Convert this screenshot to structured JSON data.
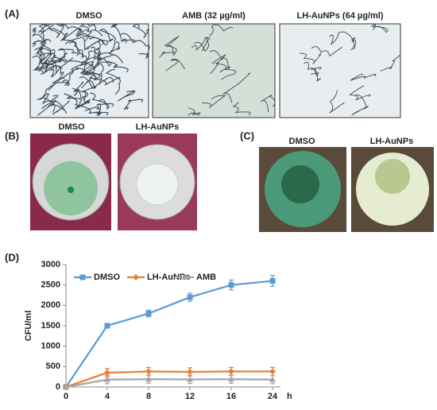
{
  "panel_labels": [
    "(A)",
    "(B)",
    "(C)",
    "(D)"
  ],
  "panel_a_titles": [
    "DMSO",
    "AMB (32 µg/ml)",
    "LH-AuNPs (64 µg/ml)"
  ],
  "panel_b_titles": [
    "DMSO",
    "LH-AuNPs"
  ],
  "panel_c_titles": [
    "DMSO",
    "LH-AuNPs"
  ],
  "chart_data": {
    "type": "line",
    "y_label": "CFU/ml",
    "x_unit": "h",
    "categories": [
      "0",
      "4",
      "8",
      "12",
      "16",
      "24"
    ],
    "series": [
      {
        "name": "DMSO",
        "color": "#5b9bd5",
        "marker": "square",
        "values": [
          0,
          1500,
          1800,
          2200,
          2500,
          2600
        ],
        "errors": [
          0,
          50,
          80,
          100,
          120,
          130
        ]
      },
      {
        "name": "LH-AuNPs",
        "color": "#ed7d31",
        "marker": "diamond",
        "values": [
          0,
          350,
          380,
          370,
          380,
          380
        ],
        "errors": [
          0,
          100,
          100,
          100,
          100,
          100
        ]
      },
      {
        "name": "AMB",
        "color": "#a5a5a5",
        "marker": "triangle",
        "values": [
          0,
          180,
          190,
          185,
          190,
          180
        ],
        "errors": [
          0,
          100,
          100,
          100,
          100,
          100
        ]
      }
    ],
    "ylim": [
      0,
      3000
    ],
    "yticks": [
      0,
      500,
      1000,
      1500,
      2000,
      2500,
      3000
    ],
    "legend": "top-left"
  }
}
